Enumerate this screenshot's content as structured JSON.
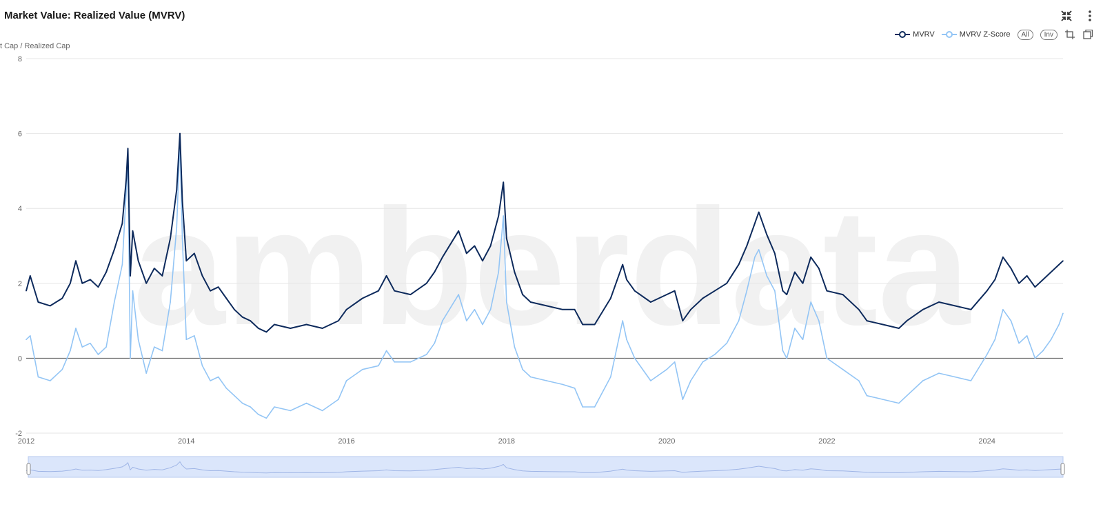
{
  "header": {
    "title": "Market Value: Realized Value (MVRV)",
    "icons": [
      "collapse-icon",
      "more-vertical-icon"
    ]
  },
  "legend": {
    "items": [
      {
        "label": "MVRV",
        "color": "#0d2a5c"
      },
      {
        "label": "MVRV Z-Score",
        "color": "#93c5f5"
      }
    ],
    "all_label": "All",
    "inv_label": "Inv",
    "tool_icons": [
      "crop-icon",
      "reset-icon"
    ]
  },
  "watermark": "amberdata",
  "colors": {
    "mvrv": "#0d2a5c",
    "zscore": "#93c5f5",
    "grid": "#e6e6e6",
    "zero_line": "#555555",
    "navigator_fill": "#dbe6fb",
    "navigator_border": "#b7c9ef"
  },
  "chart_data": {
    "type": "line",
    "title": "Market Value: Realized Value (MVRV)",
    "ylabel": "t Cap / Realized Cap",
    "xlabel": "",
    "ylim": [
      -2,
      8
    ],
    "xlim": [
      2012.0,
      2024.95
    ],
    "y_ticks": [
      -2,
      0,
      2,
      4,
      6,
      8
    ],
    "y_tick_labels": [
      "-2",
      "0",
      "2",
      "4",
      "6",
      "8"
    ],
    "x_ticks": [
      2012,
      2014,
      2016,
      2018,
      2020,
      2022,
      2024
    ],
    "x_tick_labels": [
      "2012",
      "2014",
      "2016",
      "2018",
      "2020",
      "2022",
      "2024"
    ],
    "grid": true,
    "legend_position": "top-right",
    "series": [
      {
        "name": "MVRV",
        "x": [
          2012.0,
          2012.05,
          2012.15,
          2012.3,
          2012.45,
          2012.55,
          2012.62,
          2012.7,
          2012.8,
          2012.9,
          2013.0,
          2013.1,
          2013.2,
          2013.25,
          2013.27,
          2013.3,
          2013.33,
          2013.4,
          2013.5,
          2013.6,
          2013.7,
          2013.8,
          2013.88,
          2013.92,
          2013.95,
          2014.0,
          2014.1,
          2014.2,
          2014.3,
          2014.4,
          2014.5,
          2014.6,
          2014.7,
          2014.8,
          2014.9,
          2015.0,
          2015.1,
          2015.3,
          2015.5,
          2015.7,
          2015.9,
          2016.0,
          2016.2,
          2016.4,
          2016.5,
          2016.6,
          2016.8,
          2017.0,
          2017.1,
          2017.2,
          2017.4,
          2017.5,
          2017.6,
          2017.7,
          2017.8,
          2017.9,
          2017.96,
          2018.0,
          2018.1,
          2018.2,
          2018.3,
          2018.5,
          2018.7,
          2018.85,
          2018.95,
          2019.1,
          2019.3,
          2019.45,
          2019.5,
          2019.6,
          2019.8,
          2020.0,
          2020.1,
          2020.2,
          2020.3,
          2020.45,
          2020.6,
          2020.75,
          2020.9,
          2021.0,
          2021.1,
          2021.15,
          2021.25,
          2021.35,
          2021.45,
          2021.5,
          2021.6,
          2021.7,
          2021.8,
          2021.9,
          2022.0,
          2022.2,
          2022.4,
          2022.5,
          2022.7,
          2022.9,
          2023.0,
          2023.2,
          2023.4,
          2023.6,
          2023.8,
          2024.0,
          2024.1,
          2024.2,
          2024.3,
          2024.4,
          2024.5,
          2024.6,
          2024.7,
          2024.8,
          2024.9,
          2024.95
        ],
        "values": [
          1.8,
          2.2,
          1.5,
          1.4,
          1.6,
          2.0,
          2.6,
          2.0,
          2.1,
          1.9,
          2.3,
          2.9,
          3.6,
          4.8,
          5.6,
          2.2,
          3.4,
          2.6,
          2.0,
          2.4,
          2.2,
          3.2,
          4.5,
          6.0,
          4.2,
          2.6,
          2.8,
          2.2,
          1.8,
          1.9,
          1.6,
          1.3,
          1.1,
          1.0,
          0.8,
          0.7,
          0.9,
          0.8,
          0.9,
          0.8,
          1.0,
          1.3,
          1.6,
          1.8,
          2.2,
          1.8,
          1.7,
          2.0,
          2.3,
          2.7,
          3.4,
          2.8,
          3.0,
          2.6,
          3.0,
          3.8,
          4.7,
          3.2,
          2.3,
          1.7,
          1.5,
          1.4,
          1.3,
          1.3,
          0.9,
          0.9,
          1.6,
          2.5,
          2.1,
          1.8,
          1.5,
          1.7,
          1.8,
          1.0,
          1.3,
          1.6,
          1.8,
          2.0,
          2.5,
          3.0,
          3.6,
          3.9,
          3.3,
          2.8,
          1.8,
          1.7,
          2.3,
          2.0,
          2.7,
          2.4,
          1.8,
          1.7,
          1.3,
          1.0,
          0.9,
          0.8,
          1.0,
          1.3,
          1.5,
          1.4,
          1.3,
          1.8,
          2.1,
          2.7,
          2.4,
          2.0,
          2.2,
          1.9,
          2.1,
          2.3,
          2.5,
          2.6
        ]
      },
      {
        "name": "MVRV Z-Score",
        "x": [
          2012.0,
          2012.05,
          2012.15,
          2012.3,
          2012.45,
          2012.55,
          2012.62,
          2012.7,
          2012.8,
          2012.9,
          2013.0,
          2013.1,
          2013.2,
          2013.25,
          2013.27,
          2013.3,
          2013.33,
          2013.4,
          2013.5,
          2013.6,
          2013.7,
          2013.8,
          2013.88,
          2013.92,
          2013.95,
          2014.0,
          2014.1,
          2014.2,
          2014.3,
          2014.4,
          2014.5,
          2014.6,
          2014.7,
          2014.8,
          2014.9,
          2015.0,
          2015.1,
          2015.3,
          2015.5,
          2015.7,
          2015.9,
          2016.0,
          2016.2,
          2016.4,
          2016.5,
          2016.6,
          2016.8,
          2017.0,
          2017.1,
          2017.2,
          2017.4,
          2017.5,
          2017.6,
          2017.7,
          2017.8,
          2017.9,
          2017.96,
          2018.0,
          2018.1,
          2018.2,
          2018.3,
          2018.5,
          2018.7,
          2018.85,
          2018.95,
          2019.1,
          2019.3,
          2019.45,
          2019.5,
          2019.6,
          2019.8,
          2020.0,
          2020.1,
          2020.2,
          2020.3,
          2020.45,
          2020.6,
          2020.75,
          2020.9,
          2021.0,
          2021.1,
          2021.15,
          2021.25,
          2021.35,
          2021.45,
          2021.5,
          2021.6,
          2021.7,
          2021.8,
          2021.9,
          2022.0,
          2022.2,
          2022.4,
          2022.5,
          2022.7,
          2022.9,
          2023.0,
          2023.2,
          2023.4,
          2023.6,
          2023.8,
          2024.0,
          2024.1,
          2024.2,
          2024.3,
          2024.4,
          2024.5,
          2024.6,
          2024.7,
          2024.8,
          2024.9,
          2024.95
        ],
        "values": [
          0.5,
          0.6,
          -0.5,
          -0.6,
          -0.3,
          0.2,
          0.8,
          0.3,
          0.4,
          0.1,
          0.3,
          1.5,
          2.5,
          4.5,
          5.3,
          0.0,
          1.8,
          0.5,
          -0.4,
          0.3,
          0.2,
          1.5,
          3.5,
          5.8,
          3.2,
          0.5,
          0.6,
          -0.2,
          -0.6,
          -0.5,
          -0.8,
          -1.0,
          -1.2,
          -1.3,
          -1.5,
          -1.6,
          -1.3,
          -1.4,
          -1.2,
          -1.4,
          -1.1,
          -0.6,
          -0.3,
          -0.2,
          0.2,
          -0.1,
          -0.1,
          0.1,
          0.4,
          1.0,
          1.7,
          1.0,
          1.3,
          0.9,
          1.3,
          2.3,
          3.8,
          1.5,
          0.3,
          -0.3,
          -0.5,
          -0.6,
          -0.7,
          -0.8,
          -1.3,
          -1.3,
          -0.5,
          1.0,
          0.5,
          0.0,
          -0.6,
          -0.3,
          -0.1,
          -1.1,
          -0.6,
          -0.1,
          0.1,
          0.4,
          1.0,
          1.8,
          2.7,
          2.9,
          2.2,
          1.8,
          0.2,
          0.0,
          0.8,
          0.5,
          1.5,
          1.0,
          0.0,
          -0.3,
          -0.6,
          -1.0,
          -1.1,
          -1.2,
          -1.0,
          -0.6,
          -0.4,
          -0.5,
          -0.6,
          0.1,
          0.5,
          1.3,
          1.0,
          0.4,
          0.6,
          0.0,
          0.2,
          0.5,
          0.9,
          1.2
        ]
      }
    ]
  }
}
